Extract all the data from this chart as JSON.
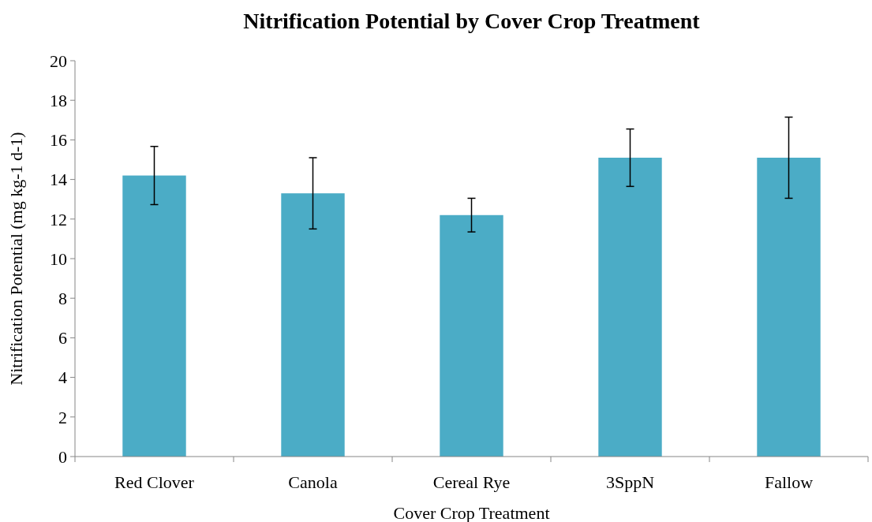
{
  "chart_data": {
    "type": "bar",
    "title": "Nitrification Potential by Cover Crop Treatment",
    "xlabel": "Cover Crop Treatment",
    "ylabel": "Nitrification Potential (mg kg-1 d-1)",
    "categories": [
      "Red Clover",
      "Canola",
      "Cereal Rye",
      "3SppN",
      "Fallow"
    ],
    "values": [
      14.2,
      13.3,
      12.2,
      15.1,
      15.1
    ],
    "errors": [
      1.47,
      1.8,
      0.85,
      1.45,
      2.05
    ],
    "color": "#4bacc6",
    "ylim": [
      0,
      20
    ],
    "yticks": [
      0,
      2,
      4,
      6,
      8,
      10,
      12,
      14,
      16,
      18,
      20
    ],
    "grid": false
  }
}
